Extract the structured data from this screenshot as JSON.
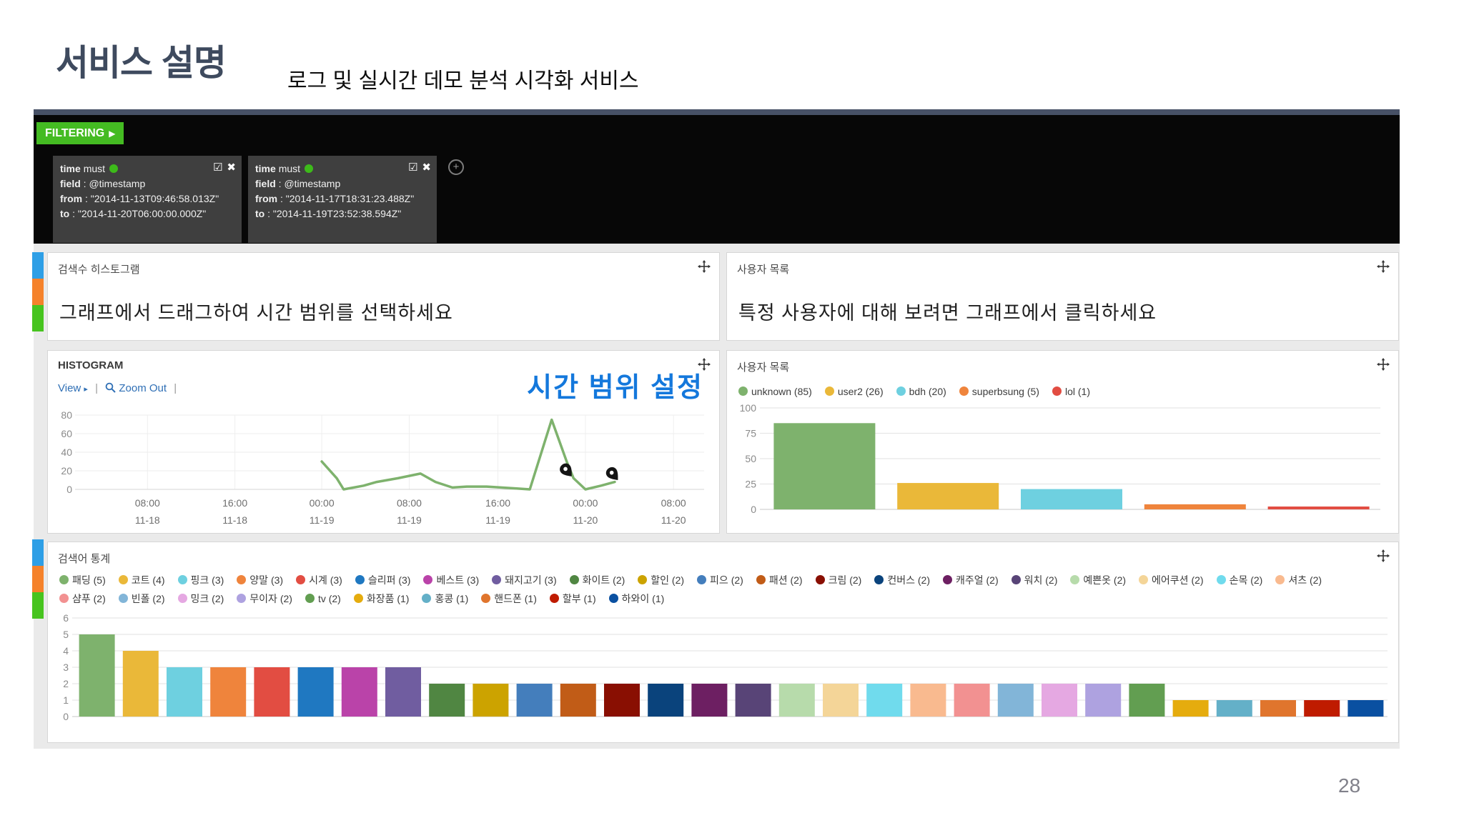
{
  "slide": {
    "title": "서비스 설명",
    "subtitle": "로그 및 실시간 데모 분석 시각화 서비스",
    "page_number": "28"
  },
  "filter_bar": {
    "button_label": "FILTERING",
    "filters": [
      {
        "key": "time",
        "condition": "must",
        "field_label": "field",
        "field_value": "@timestamp",
        "from_label": "from",
        "from_value": "\"2014-11-13T09:46:58.013Z\"",
        "to_label": "to",
        "to_value": "\"2014-11-20T06:00:00.000Z\""
      },
      {
        "key": "time",
        "condition": "must",
        "field_label": "field",
        "field_value": "@timestamp",
        "from_label": "from",
        "from_value": "\"2014-11-17T18:31:23.488Z\"",
        "to_label": "to",
        "to_value": "\"2014-11-19T23:52:38.594Z\""
      }
    ]
  },
  "panels": {
    "search_note": {
      "title": "검색수 히스토그램",
      "message": "그래프에서 드래그하여 시간 범위를 선택하세요"
    },
    "user_note": {
      "title": "사용자 목록",
      "message": "특정 사용자에 대해 보려면 그래프에서 클릭하세요"
    },
    "histogram": {
      "title": "HISTOGRAM",
      "view_label": "View",
      "zoom_out_label": "Zoom Out",
      "annotation": "시간 범위 설정"
    },
    "user_chart": {
      "title": "사용자 목록"
    },
    "keyword_stats": {
      "title": "검색어 통계"
    }
  },
  "chart_data": [
    {
      "type": "line",
      "panel": "HISTOGRAM",
      "line_color": "#7eb26d",
      "ylim": [
        0,
        80
      ],
      "yticks": [
        0,
        20,
        40,
        60,
        80
      ],
      "xticks": [
        {
          "time": "08:00",
          "date": "11-18",
          "f": 0.109
        },
        {
          "time": "16:00",
          "date": "11-18",
          "f": 0.249
        },
        {
          "time": "00:00",
          "date": "11-19",
          "f": 0.388
        },
        {
          "time": "08:00",
          "date": "11-19",
          "f": 0.528
        },
        {
          "time": "16:00",
          "date": "11-19",
          "f": 0.67
        },
        {
          "time": "00:00",
          "date": "11-20",
          "f": 0.81
        },
        {
          "time": "08:00",
          "date": "11-20",
          "f": 0.951
        }
      ],
      "points": [
        {
          "f": 0.388,
          "v": 30
        },
        {
          "f": 0.412,
          "v": 12
        },
        {
          "f": 0.423,
          "v": 0
        },
        {
          "f": 0.455,
          "v": 4
        },
        {
          "f": 0.476,
          "v": 8
        },
        {
          "f": 0.51,
          "v": 12
        },
        {
          "f": 0.546,
          "v": 17
        },
        {
          "f": 0.57,
          "v": 8
        },
        {
          "f": 0.597,
          "v": 2
        },
        {
          "f": 0.62,
          "v": 3
        },
        {
          "f": 0.652,
          "v": 3
        },
        {
          "f": 0.675,
          "v": 2
        },
        {
          "f": 0.7,
          "v": 1
        },
        {
          "f": 0.721,
          "v": 0
        },
        {
          "f": 0.756,
          "v": 75
        },
        {
          "f": 0.78,
          "v": 30
        },
        {
          "f": 0.791,
          "v": 12
        },
        {
          "f": 0.81,
          "v": 0
        },
        {
          "f": 0.835,
          "v": 4
        },
        {
          "f": 0.857,
          "v": 8
        }
      ],
      "markers": [
        {
          "f": 0.788,
          "v": 14
        },
        {
          "f": 0.862,
          "v": 10
        }
      ]
    },
    {
      "type": "bar",
      "panel": "사용자 목록",
      "ylim": [
        0,
        100
      ],
      "yticks": [
        100,
        75,
        50,
        25,
        0
      ],
      "series": [
        {
          "name": "unknown",
          "value": 85,
          "color": "#7EB26D"
        },
        {
          "name": "user2",
          "value": 26,
          "color": "#EAB839"
        },
        {
          "name": "bdh",
          "value": 20,
          "color": "#6ED0E0"
        },
        {
          "name": "superbsung",
          "value": 5,
          "color": "#EF843C"
        },
        {
          "name": "lol",
          "value": 1,
          "color": "#E24D42"
        }
      ]
    },
    {
      "type": "bar",
      "panel": "검색어 통계",
      "ylim": [
        0,
        6
      ],
      "yticks": [
        6,
        5,
        4,
        3,
        2,
        1,
        0
      ],
      "series": [
        {
          "name": "패딩",
          "value": 5,
          "color": "#7EB26D"
        },
        {
          "name": "코트",
          "value": 4,
          "color": "#EAB839"
        },
        {
          "name": "핑크",
          "value": 3,
          "color": "#6ED0E0"
        },
        {
          "name": "양말",
          "value": 3,
          "color": "#EF843C"
        },
        {
          "name": "시계",
          "value": 3,
          "color": "#E24D42"
        },
        {
          "name": "슬리퍼",
          "value": 3,
          "color": "#1F78C1"
        },
        {
          "name": "베스트",
          "value": 3,
          "color": "#BA43A9"
        },
        {
          "name": "돼지고기",
          "value": 3,
          "color": "#705DA0"
        },
        {
          "name": "화이트",
          "value": 2,
          "color": "#508642"
        },
        {
          "name": "할인",
          "value": 2,
          "color": "#CCA300"
        },
        {
          "name": "피으",
          "value": 2,
          "color": "#447EBC"
        },
        {
          "name": "패션",
          "value": 2,
          "color": "#C15C17"
        },
        {
          "name": "크림",
          "value": 2,
          "color": "#890F02"
        },
        {
          "name": "컨버스",
          "value": 2,
          "color": "#0A437C"
        },
        {
          "name": "캐주얼",
          "value": 2,
          "color": "#6D1F62"
        },
        {
          "name": "워치",
          "value": 2,
          "color": "#584477"
        },
        {
          "name": "예쁜옷",
          "value": 2,
          "color": "#B7DBAB"
        },
        {
          "name": "에어쿠션",
          "value": 2,
          "color": "#F4D598"
        },
        {
          "name": "손목",
          "value": 2,
          "color": "#70DBED"
        },
        {
          "name": "셔츠",
          "value": 2,
          "color": "#F9BA8F"
        },
        {
          "name": "샴푸",
          "value": 2,
          "color": "#F29191"
        },
        {
          "name": "빈폴",
          "value": 2,
          "color": "#82B5D8"
        },
        {
          "name": "밍크",
          "value": 2,
          "color": "#E5A8E2"
        },
        {
          "name": "무이자",
          "value": 2,
          "color": "#AEA2E0"
        },
        {
          "name": "tv",
          "value": 2,
          "color": "#629E51"
        },
        {
          "name": "화장품",
          "value": 1,
          "color": "#E5AC0E"
        },
        {
          "name": "홍콩",
          "value": 1,
          "color": "#64B0C8"
        },
        {
          "name": "핸드폰",
          "value": 1,
          "color": "#E0752D"
        },
        {
          "name": "할부",
          "value": 1,
          "color": "#BF1B00"
        },
        {
          "name": "하와이",
          "value": 1,
          "color": "#0A50A1"
        }
      ]
    }
  ]
}
